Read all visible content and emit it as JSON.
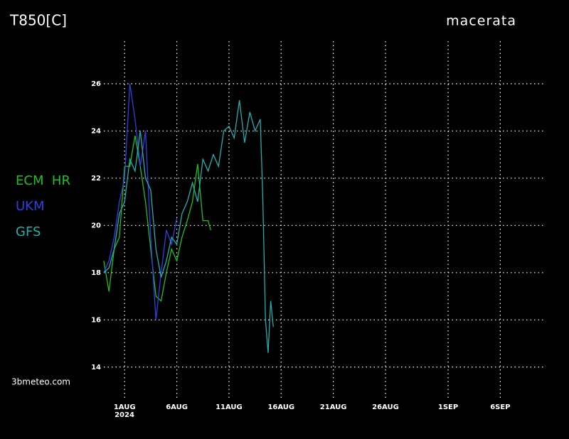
{
  "chart_data": {
    "type": "line",
    "title": "T850[C]",
    "subtitle": "macerata",
    "credit": "3bmeteo.com",
    "year_label": "2024",
    "xlim": [
      -1.4,
      41.2
    ],
    "ylim": [
      12.7,
      27.8
    ],
    "yticks": [
      14,
      16,
      18,
      20,
      22,
      24,
      26
    ],
    "xticks": [
      {
        "value": 1,
        "label": "1AUG"
      },
      {
        "value": 6,
        "label": "6AUG"
      },
      {
        "value": 11,
        "label": "11AUG"
      },
      {
        "value": 16,
        "label": "16AUG"
      },
      {
        "value": 21,
        "label": "21AUG"
      },
      {
        "value": 26,
        "label": "26AUG"
      },
      {
        "value": 32,
        "label": "1SEP"
      },
      {
        "value": 37,
        "label": "6SEP"
      }
    ],
    "grid": true,
    "series": [
      {
        "name": "ECM  HR",
        "color": "#20c020",
        "x": [
          -1,
          -0.5,
          0,
          0.5,
          1,
          1.5,
          2,
          2.5,
          3,
          3.5,
          4,
          4.5,
          5,
          5.5,
          6,
          6.5,
          7,
          7.5,
          8,
          8.5,
          9,
          9.25
        ],
        "values": [
          18.5,
          17.2,
          19.0,
          19.5,
          22.5,
          22.5,
          23.8,
          22.5,
          21.0,
          19.0,
          17.0,
          16.8,
          18.0,
          19.0,
          18.5,
          19.5,
          20.2,
          21.0,
          22.6,
          20.2,
          20.2,
          19.8
        ]
      },
      {
        "name": "UKM",
        "color": "#3040e0",
        "x": [
          -1,
          -0.5,
          0,
          0.5,
          1,
          1.5,
          2,
          2.5,
          3,
          3.5,
          4,
          4.5,
          5,
          5.5,
          6
        ],
        "values": [
          18.0,
          18.5,
          19.5,
          21.0,
          22.0,
          26.0,
          24.5,
          22.5,
          24.0,
          19.5,
          16.0,
          18.0,
          19.8,
          19.2,
          20.3
        ]
      },
      {
        "name": "GFS",
        "color": "#20b0b0",
        "x": [
          -1,
          -0.5,
          0,
          0.5,
          1,
          1.5,
          2,
          2.5,
          3,
          3.5,
          4,
          4.5,
          5,
          5.5,
          6,
          6.5,
          7,
          7.5,
          8,
          8.5,
          9,
          9.5,
          10,
          10.5,
          11,
          11.5,
          12,
          12.5,
          13,
          13.5,
          14,
          14.25,
          14.5,
          14.75,
          15,
          15.25
        ],
        "values": [
          18.0,
          18.2,
          19.0,
          20.5,
          21.0,
          22.8,
          22.3,
          24.0,
          22.0,
          21.5,
          19.0,
          17.8,
          18.5,
          19.5,
          19.2,
          20.5,
          21.0,
          21.8,
          21.0,
          22.8,
          22.3,
          23.0,
          22.5,
          24.0,
          24.2,
          23.7,
          25.3,
          23.5,
          24.8,
          24.0,
          24.5,
          21.0,
          16.0,
          14.6,
          16.8,
          15.7
        ]
      }
    ]
  }
}
